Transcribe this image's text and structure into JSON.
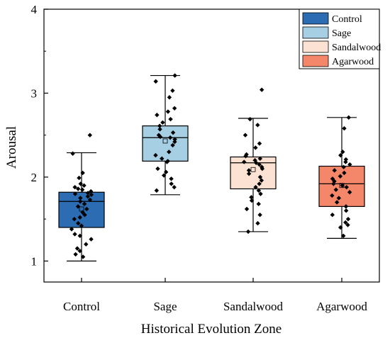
{
  "chart_data": {
    "type": "box",
    "title": "",
    "xlabel": "Historical Evolution Zone",
    "ylabel": "Arousal",
    "ylim": [
      0.75,
      4
    ],
    "yticks": [
      1,
      2,
      3,
      4
    ],
    "categories": [
      "Control",
      "Sage",
      "Sandalwood",
      "Agarwood"
    ],
    "legend": {
      "position": "top-right",
      "entries": [
        "Control",
        "Sage",
        "Sandalwood",
        "Agarwood"
      ]
    },
    "colors": {
      "Control": "#2b6cb3",
      "Sage": "#a6cfe4",
      "Sandalwood": "#fbe2d2",
      "Agarwood": "#f4876a"
    },
    "series": [
      {
        "name": "Control",
        "min": 1.0,
        "q1": 1.4,
        "median": 1.71,
        "q3": 1.82,
        "max": 2.29,
        "mean": 1.62,
        "points": [
          2.5,
          2.28,
          2.05,
          1.99,
          1.92,
          1.9,
          1.88,
          1.86,
          1.85,
          1.83,
          1.81,
          1.8,
          1.79,
          1.77,
          1.75,
          1.73,
          1.71,
          1.68,
          1.65,
          1.62,
          1.58,
          1.55,
          1.52,
          1.5,
          1.45,
          1.42,
          1.38,
          1.32,
          1.3,
          1.26,
          1.2,
          1.15,
          1.12,
          1.08,
          1.05
        ]
      },
      {
        "name": "Sage",
        "min": 1.79,
        "q1": 2.19,
        "median": 2.47,
        "q3": 2.61,
        "max": 3.21,
        "mean": 2.43,
        "points": [
          3.21,
          3.14,
          3.03,
          2.95,
          2.82,
          2.78,
          2.74,
          2.69,
          2.65,
          2.61,
          2.57,
          2.53,
          2.5,
          2.48,
          2.47,
          2.45,
          2.42,
          2.38,
          2.3,
          2.26,
          2.22,
          2.19,
          2.18,
          2.1,
          2.06,
          2.02,
          1.98,
          1.92,
          1.88,
          1.84
        ]
      },
      {
        "name": "Sandalwood",
        "min": 1.35,
        "q1": 1.86,
        "median": 2.17,
        "q3": 2.24,
        "max": 2.7,
        "mean": 2.09,
        "points": [
          3.04,
          2.69,
          2.62,
          2.5,
          2.4,
          2.35,
          2.27,
          2.25,
          2.22,
          2.2,
          2.18,
          2.17,
          2.15,
          2.12,
          2.1,
          2.08,
          2.04,
          2.0,
          1.96,
          1.92,
          1.88,
          1.84,
          1.8,
          1.76,
          1.72,
          1.68,
          1.62,
          1.55,
          1.45,
          1.35
        ]
      },
      {
        "name": "Agarwood",
        "min": 1.27,
        "q1": 1.65,
        "median": 1.92,
        "q3": 2.13,
        "max": 2.71,
        "mean": 1.9,
        "points": [
          2.71,
          2.58,
          2.3,
          2.26,
          2.21,
          2.18,
          2.15,
          2.12,
          2.08,
          2.05,
          2.01,
          1.98,
          1.95,
          1.92,
          1.9,
          1.88,
          1.85,
          1.82,
          1.78,
          1.75,
          1.7,
          1.65,
          1.6,
          1.55,
          1.5,
          1.46,
          1.43,
          1.4,
          1.3
        ]
      }
    ]
  }
}
